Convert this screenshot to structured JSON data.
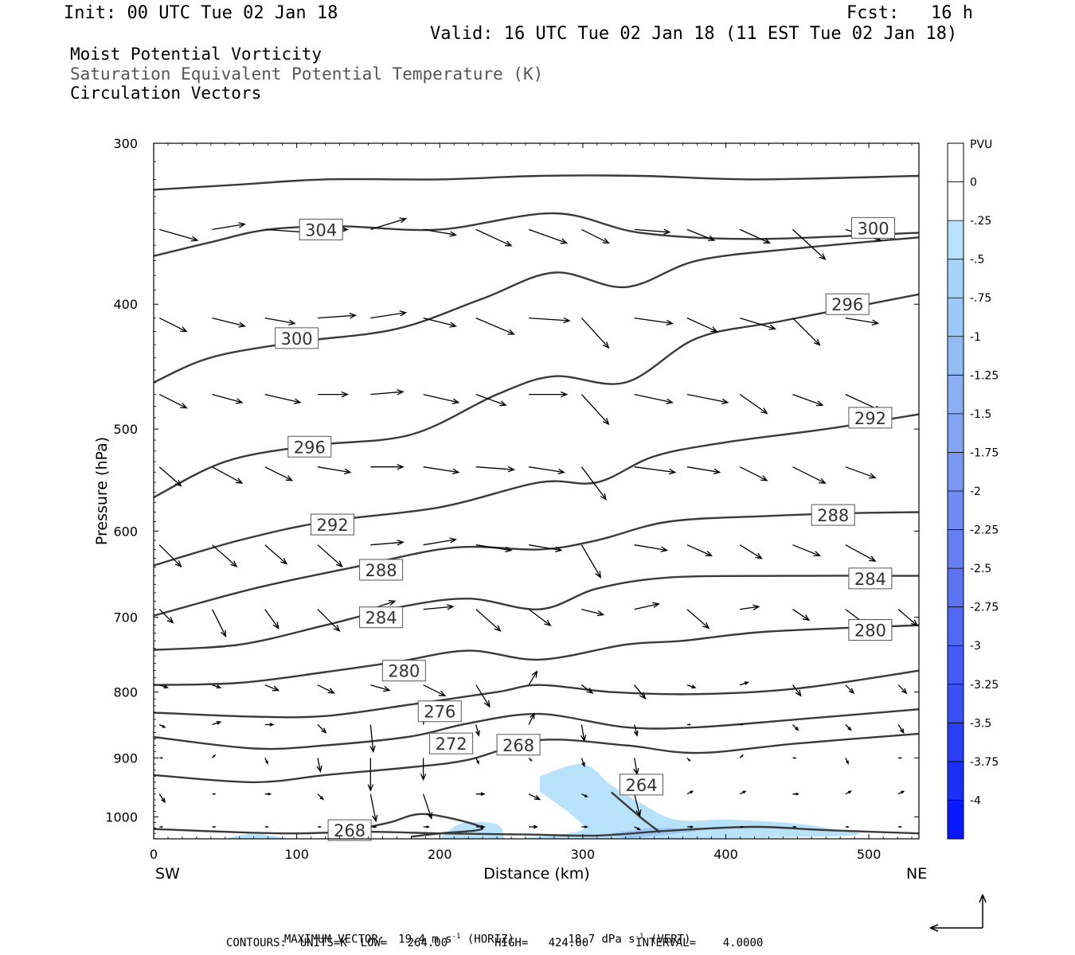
{
  "header": {
    "init": "Init: 00 UTC Tue 02 Jan 18",
    "fcst": "Fcst:   16 h",
    "valid": "Valid: 16 UTC Tue 02 Jan 18 (11 EST Tue 02 Jan 18)",
    "fields": [
      "Moist Potential Vorticity",
      "Saturation Equivalent Potential Temperature (K)",
      "Circulation Vectors"
    ]
  },
  "colors": {
    "contour": "#3a3a3a",
    "pv_light": "#b8e2fa",
    "pv_mid": "#9cc8f5",
    "pv_dark": "#8a9ff0",
    "arrow": "#000000"
  },
  "chart_data": {
    "type": "cross-section",
    "xlabel": "Distance (km)",
    "ylabel": "Pressure (hPa)",
    "xlim": [
      0,
      535
    ],
    "ylim": [
      1040,
      300
    ],
    "y_scale": "log-pressure",
    "x_ticks": [
      0,
      100,
      200,
      300,
      400,
      500
    ],
    "y_ticks": [
      300,
      400,
      500,
      600,
      700,
      800,
      900,
      1000
    ],
    "x_end_labels": [
      "SW",
      "NE"
    ],
    "colorbar": {
      "unit": "PVU",
      "ticks": [
        "0",
        "-.25",
        "-.5",
        "-.75",
        "-1",
        "-1.25",
        "-1.5",
        "-1.75",
        "-2",
        "-2.25",
        "-2.5",
        "-2.75",
        "-3",
        "-3.25",
        "-3.5",
        "-3.75",
        "-4"
      ],
      "colors": [
        "#ffffff",
        "#ffffff",
        "#b8e2fa",
        "#a6d4f8",
        "#9cc8f5",
        "#92bcf4",
        "#8ab0f3",
        "#82a4f2",
        "#7a98f2",
        "#708cf1",
        "#6680f1",
        "#5c74f1",
        "#5068f2",
        "#445cf3",
        "#3850f4",
        "#2a40f6",
        "#1a30f8",
        "#0818fc"
      ]
    },
    "contours": [
      {
        "label": "304",
        "label_at": [
          117,
          350
        ],
        "points": [
          [
            0,
            367
          ],
          [
            40,
            358
          ],
          [
            80,
            350
          ],
          [
            130,
            348
          ],
          [
            200,
            350
          ],
          [
            280,
            340
          ],
          [
            340,
            352
          ],
          [
            420,
            356
          ],
          [
            535,
            352
          ]
        ]
      },
      {
        "label": "300",
        "label_at": [
          503,
          349
        ],
        "points": [
          [
            0,
            326
          ],
          [
            60,
            323
          ],
          [
            120,
            320
          ],
          [
            200,
            320
          ],
          [
            270,
            318
          ],
          [
            340,
            318
          ],
          [
            420,
            320
          ],
          [
            535,
            318
          ]
        ]
      },
      {
        "label": "300",
        "label_at": [
          100,
          425
        ],
        "points": [
          [
            0,
            460
          ],
          [
            40,
            440
          ],
          [
            100,
            428
          ],
          [
            170,
            418
          ],
          [
            230,
            396
          ],
          [
            280,
            378
          ],
          [
            330,
            388
          ],
          [
            380,
            370
          ],
          [
            450,
            362
          ],
          [
            535,
            355
          ]
        ]
      },
      {
        "label": "296",
        "label_at": [
          485,
          400
        ],
        "points": [
          [
            0,
            565
          ],
          [
            50,
            530
          ],
          [
            110,
            515
          ],
          [
            180,
            505
          ],
          [
            240,
            470
          ],
          [
            280,
            455
          ],
          [
            330,
            460
          ],
          [
            380,
            425
          ],
          [
            440,
            412
          ],
          [
            535,
            393
          ]
        ]
      },
      {
        "label": "296",
        "label_at": [
          109,
          516
        ],
        "points": [
          [
            0,
            638
          ],
          [
            60,
            610
          ],
          [
            120,
            590
          ],
          [
            200,
            575
          ],
          [
            270,
            550
          ],
          [
            310,
            550
          ],
          [
            350,
            525
          ],
          [
            400,
            512
          ],
          [
            470,
            500
          ],
          [
            535,
            487
          ]
        ]
      },
      {
        "label": "292",
        "label_at": [
          501,
          490
        ],
        "points": [
          [
            0,
            698
          ],
          [
            70,
            665
          ],
          [
            140,
            640
          ],
          [
            210,
            618
          ],
          [
            270,
            620
          ],
          [
            310,
            610
          ],
          [
            360,
            590
          ],
          [
            430,
            584
          ],
          [
            490,
            581
          ],
          [
            535,
            580
          ]
        ]
      },
      {
        "label": "292",
        "label_at": [
          125,
          593
        ],
        "points": [
          [
            0,
            742
          ],
          [
            60,
            735
          ],
          [
            120,
            710
          ],
          [
            170,
            688
          ],
          [
            220,
            677
          ],
          [
            270,
            690
          ],
          [
            310,
            665
          ],
          [
            360,
            652
          ],
          [
            440,
            650
          ],
          [
            535,
            650
          ]
        ]
      },
      {
        "label": "288",
        "label_at": [
          475,
          583
        ],
        "points": [
          [
            0,
            790
          ],
          [
            60,
            787
          ],
          [
            120,
            772
          ],
          [
            170,
            758
          ],
          [
            220,
            743
          ],
          [
            270,
            755
          ],
          [
            330,
            735
          ],
          [
            370,
            730
          ],
          [
            430,
            718
          ],
          [
            535,
            710
          ]
        ]
      },
      {
        "label": "288",
        "label_at": [
          159,
          643
        ],
        "points": [
          [
            0,
            830
          ],
          [
            70,
            836
          ],
          [
            120,
            835
          ],
          [
            180,
            818
          ],
          [
            240,
            800
          ],
          [
            270,
            790
          ],
          [
            320,
            800
          ],
          [
            380,
            803
          ],
          [
            450,
            795
          ],
          [
            535,
            770
          ]
        ]
      },
      {
        "label": "284",
        "label_at": [
          501,
          653
        ],
        "points": [
          [
            0,
            867
          ],
          [
            70,
            885
          ],
          [
            120,
            880
          ],
          [
            180,
            866
          ],
          [
            220,
            846
          ],
          [
            270,
            832
          ],
          [
            330,
            852
          ],
          [
            380,
            852
          ],
          [
            450,
            840
          ],
          [
            535,
            825
          ]
        ]
      },
      {
        "label": "284",
        "label_at": [
          159,
          700
        ],
        "points": [
          [
            0,
            928
          ],
          [
            70,
            940
          ],
          [
            120,
            928
          ],
          [
            180,
            915
          ],
          [
            220,
            903
          ],
          [
            270,
            872
          ],
          [
            330,
            880
          ],
          [
            380,
            892
          ],
          [
            450,
            877
          ],
          [
            535,
            862
          ]
        ]
      },
      {
        "label": "280",
        "label_at": [
          501,
          716
        ],
        "points": [
          [
            0,
            1022
          ],
          [
            60,
            1028
          ],
          [
            100,
            1030
          ],
          [
            150,
            1027
          ],
          [
            200,
            1030
          ],
          [
            260,
            1032
          ],
          [
            310,
            1034
          ],
          [
            360,
            1025
          ],
          [
            420,
            1018
          ],
          [
            470,
            1024
          ],
          [
            535,
            1030
          ]
        ]
      },
      {
        "label": "264",
        "label_at": [
          341,
          944
        ],
        "points": [
          [
            320,
            957
          ],
          [
            340,
            1000
          ],
          [
            354,
            1028
          ]
        ]
      },
      {
        "label": "268",
        "label_at": [
          255,
          879
        ],
        "points": [
          [
            180,
            1036
          ],
          [
            200,
            1030
          ],
          [
            230,
            1020
          ],
          [
            190,
            995
          ],
          [
            165,
            1010
          ],
          [
            140,
            1024
          ]
        ]
      }
    ],
    "contour_label_values": [
      "304",
      "300",
      "300",
      "296",
      "296",
      "292",
      "292",
      "288",
      "288",
      "284",
      "284",
      "280",
      "280",
      "276",
      "272",
      "268",
      "264",
      "268"
    ],
    "extra_labels": [
      {
        "label": "280",
        "label_at": [
          175,
          770
        ]
      },
      {
        "label": "280",
        "label_at": [
          501,
          716
        ]
      },
      {
        "label": "276",
        "label_at": [
          200,
          828
        ]
      },
      {
        "label": "272",
        "label_at": [
          208,
          877
        ]
      },
      {
        "label": "268",
        "label_at": [
          137,
          1024
        ]
      }
    ],
    "pv_regions": [
      {
        "level": "-.25",
        "polygon": [
          [
            270,
            930
          ],
          [
            300,
            910
          ],
          [
            320,
            945
          ],
          [
            340,
            975
          ],
          [
            365,
            1005
          ],
          [
            400,
            1005
          ],
          [
            440,
            1010
          ],
          [
            470,
            1020
          ],
          [
            480,
            1035
          ],
          [
            270,
            1040
          ],
          [
            290,
            1030
          ],
          [
            300,
            1015
          ],
          [
            270,
            955
          ]
        ]
      },
      {
        "level": "-.5",
        "polygon": [
          [
            320,
            1030
          ],
          [
            350,
            1020
          ],
          [
            380,
            1025
          ],
          [
            330,
            1040
          ]
        ]
      },
      {
        "level": "-.25",
        "polygon": [
          [
            200,
            1040
          ],
          [
            215,
            1012
          ],
          [
            240,
            1013
          ],
          [
            245,
            1040
          ]
        ]
      },
      {
        "level": "-.25",
        "polygon": [
          [
            50,
            1040
          ],
          [
            70,
            1030
          ],
          [
            95,
            1040
          ]
        ]
      }
    ],
    "vectors": {
      "rows": [
        350,
        410,
        470,
        535,
        615,
        690,
        790,
        848,
        900,
        960,
        1018
      ],
      "u": [
        [
          1.4,
          1.2,
          1.5,
          1.1,
          1.3,
          1.2,
          1.3,
          1.4,
          1.0,
          1.3,
          1.0,
          1.1,
          1.2,
          1.3,
          1.1
        ],
        [
          1.0,
          1.2,
          1.1,
          1.4,
          1.3,
          1.2,
          1.4,
          1.5,
          1.0,
          1.4,
          1.1,
          1.3,
          1.0,
          1.2,
          1.3
        ],
        [
          1.0,
          1.1,
          1.3,
          1.1,
          1.2,
          1.3,
          1.1,
          1.4,
          1.0,
          1.4,
          1.5,
          1.0,
          1.1,
          1.3,
          1.2
        ],
        [
          0.8,
          1.1,
          1.0,
          1.2,
          1.2,
          1.3,
          1.4,
          1.3,
          0.9,
          1.5,
          1.2,
          1.0,
          1.2,
          1.1,
          1.3
        ],
        [
          0.8,
          0.9,
          0.8,
          0.9,
          1.2,
          1.2,
          1.3,
          1.2,
          0.7,
          1.2,
          0.9,
          0.8,
          1.0,
          1.1,
          1.0
        ],
        [
          0.5,
          0.5,
          0.5,
          0.8,
          0.9,
          1.1,
          0.9,
          0.8,
          0.8,
          0.9,
          0.8,
          0.7,
          0.6,
          0.8,
          0.7
        ],
        [
          0.3,
          0.3,
          0.5,
          0.6,
          0.7,
          0.8,
          0.5,
          0.3,
          0.4,
          0.4,
          0.3,
          0.3,
          0.3,
          0.3,
          0.3
        ],
        [
          0.2,
          0.3,
          0.3,
          0.3,
          0.1,
          0.1,
          0.1,
          0.2,
          0.1,
          0.1,
          0.1,
          0.1,
          0.2,
          0.2,
          0.2
        ],
        [
          0.1,
          0.1,
          0.1,
          0.1,
          0.0,
          0.0,
          0.1,
          0.1,
          0.1,
          0.1,
          0.1,
          0.1,
          0.1,
          0.1,
          0.1
        ],
        [
          0.2,
          0.1,
          0.2,
          0.2,
          0.2,
          0.3,
          0.3,
          0.4,
          0.2,
          0.2,
          0.2,
          0.2,
          0.2,
          0.2,
          0.2
        ],
        [
          0.1,
          0.1,
          0.1,
          0.1,
          0.2,
          0.2,
          0.3,
          0.3,
          0.2,
          0.2,
          0.2,
          0.1,
          0.1,
          0.1,
          0.1
        ]
      ],
      "w": [
        [
          0.4,
          -0.2,
          0.1,
          0.0,
          -0.4,
          0.2,
          0.6,
          0.5,
          0.5,
          0.1,
          0.4,
          0.5,
          1.1,
          0.4,
          0.1
        ],
        [
          0.5,
          0.3,
          0.2,
          -0.1,
          -0.2,
          0.3,
          0.6,
          0.1,
          1.1,
          0.2,
          0.5,
          0.4,
          1.0,
          0.2,
          0.2
        ],
        [
          0.5,
          0.3,
          0.3,
          0.0,
          -0.1,
          0.3,
          0.4,
          0.0,
          1.1,
          0.3,
          0.3,
          0.7,
          0.4,
          0.6,
          0.4
        ],
        [
          0.7,
          0.6,
          0.5,
          0.2,
          0.0,
          0.2,
          0.1,
          0.2,
          1.2,
          0.2,
          0.2,
          0.5,
          0.6,
          0.4,
          0.2
        ],
        [
          0.8,
          0.8,
          0.7,
          0.8,
          -0.1,
          -0.2,
          0.2,
          0.2,
          1.2,
          0.2,
          0.4,
          0.5,
          0.4,
          0.6,
          0.6
        ],
        [
          0.5,
          1.0,
          0.7,
          0.8,
          -0.3,
          -0.1,
          0.8,
          0.6,
          0.2,
          -0.2,
          0.7,
          -0.1,
          0.4,
          0.6,
          0.6
        ],
        [
          0.1,
          0.1,
          0.2,
          0.3,
          0.2,
          0.4,
          0.8,
          -0.5,
          0.3,
          0.5,
          0.1,
          -0.1,
          0.4,
          0.3,
          0.3
        ],
        [
          0.1,
          -0.1,
          0.0,
          0.3,
          1.0,
          -0.8,
          0.4,
          -0.4,
          0.6,
          0.4,
          0.0,
          0.0,
          0.2,
          0.2,
          0.3
        ],
        [
          0.0,
          -0.1,
          0.2,
          0.5,
          1.2,
          0.8,
          0.2,
          0.1,
          0.3,
          0.6,
          0.1,
          -0.1,
          0.0,
          0.2,
          0.0
        ],
        [
          0.3,
          0.0,
          0.0,
          0.2,
          1.0,
          0.9,
          0.0,
          0.2,
          0.1,
          0.8,
          -0.1,
          -0.1,
          0.0,
          -0.1,
          -0.1
        ],
        [
          0.0,
          0.0,
          0.0,
          0.0,
          0.0,
          0.0,
          0.0,
          0.0,
          0.0,
          0.1,
          0.0,
          0.0,
          0.0,
          0.0,
          0.0
        ]
      ]
    }
  },
  "footer": {
    "max_vector_label": "MAXIMUM VECTOR:",
    "horiz": "19.4 m s",
    "horiz_unit": "(HORIZ)",
    "vert": "18.7 dPa s",
    "vert_unit": "(VERT)",
    "exponent": "-1",
    "contours": "CONTOURS:  UNITS=K  LOW=   264.00       HIGH=   424.00       INTERVAL=    4.0000"
  }
}
